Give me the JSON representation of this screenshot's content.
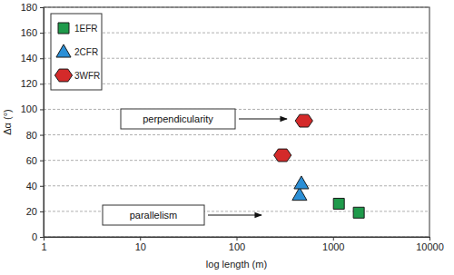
{
  "chart_data": {
    "type": "scatter",
    "x_label": "log length (m)",
    "y_label": "Δα (°)",
    "log": "x",
    "grid": true,
    "legend": "upper left",
    "xlim": [
      1,
      10000
    ],
    "xticks": [
      1,
      10,
      100,
      1000,
      10000
    ],
    "ylim": [
      0,
      180
    ],
    "yticks": [
      0,
      20,
      40,
      60,
      80,
      100,
      120,
      140,
      160,
      180
    ],
    "series": [
      {
        "name": "1EFR",
        "color": "#1f9a4b",
        "marker": "square",
        "x": [
          1150,
          1850
        ],
        "values": [
          26,
          19
        ]
      },
      {
        "name": "2CFR",
        "color": "#2b8fd6",
        "marker": "triangle",
        "x": [
          450,
          470
        ],
        "values": [
          33,
          42
        ]
      },
      {
        "name": "3WFR",
        "color": "#d42a2a",
        "marker": "hexagon",
        "x": [
          300,
          500
        ],
        "values": [
          64,
          91
        ]
      }
    ],
    "annotations": [
      "perpendicularity",
      "parallelism"
    ]
  }
}
